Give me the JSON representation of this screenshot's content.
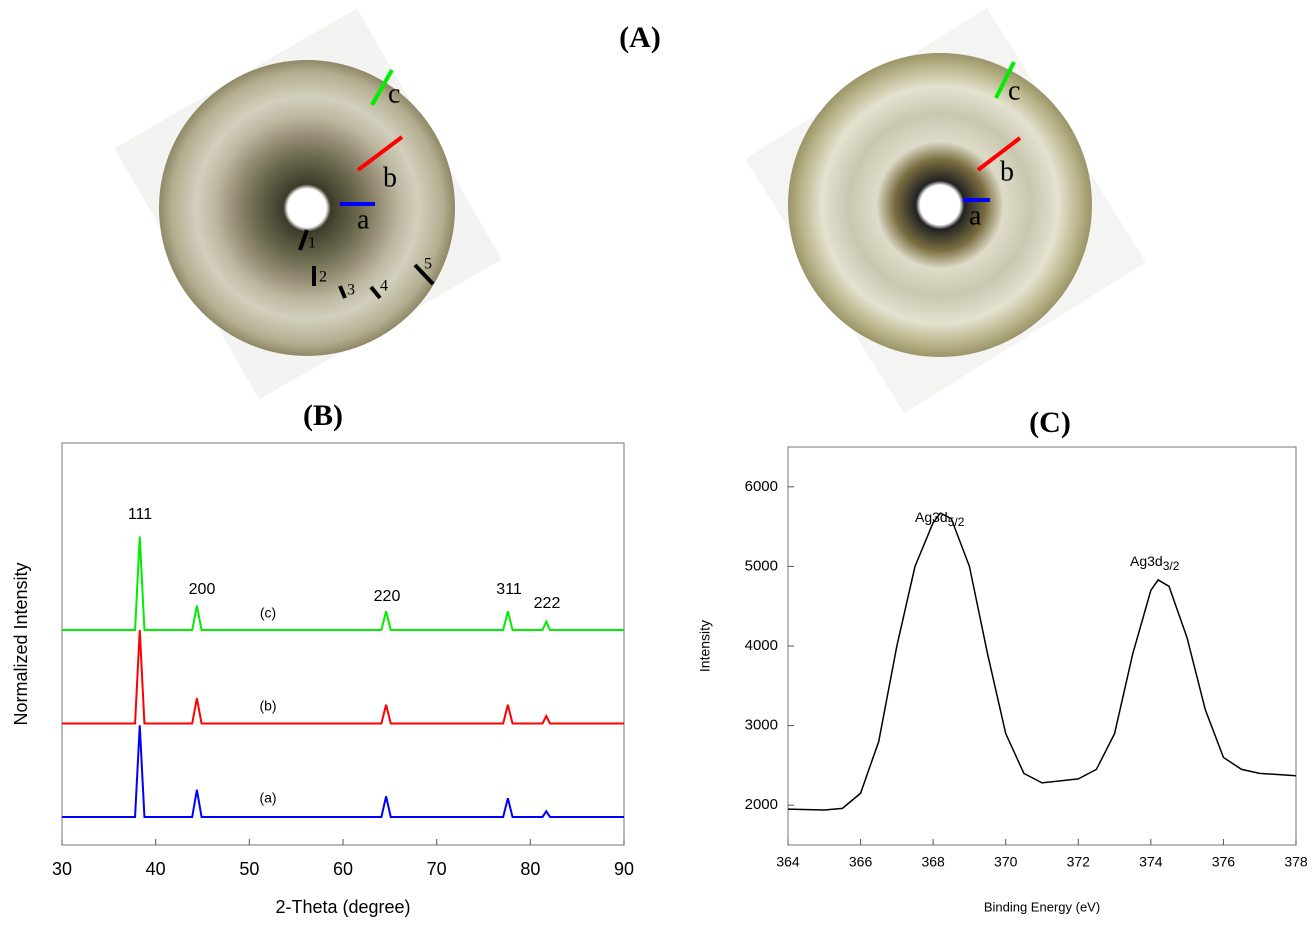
{
  "panel_a": {
    "title": "(A)",
    "left_labels": [
      "a",
      "b",
      "c"
    ],
    "region_labels": [
      "1",
      "2",
      "3",
      "4",
      "5"
    ],
    "right_labels": [
      "a",
      "b",
      "c"
    ]
  },
  "chart_data": [
    {
      "type": "line",
      "title": "(B)",
      "x_label": "2-Theta (degree)",
      "y_label": "Normalized Intensity",
      "x": [
        30,
        37.8,
        38.3,
        38.8,
        43.9,
        44.4,
        44.9,
        64.1,
        64.6,
        65.1,
        77.1,
        77.6,
        78.1,
        81.3,
        81.7,
        82.1,
        90
      ],
      "series": [
        {
          "name": "(a)",
          "color": "#0000ff",
          "values": [
            0.3,
            0.3,
            1.28,
            0.3,
            0.3,
            0.59,
            0.3,
            0.3,
            0.52,
            0.3,
            0.3,
            0.5,
            0.3,
            0.3,
            0.36,
            0.3,
            0.3
          ]
        },
        {
          "name": "(b)",
          "color": "#ff0000",
          "values": [
            1.3,
            1.3,
            2.3,
            1.3,
            1.3,
            1.57,
            1.3,
            1.3,
            1.5,
            1.3,
            1.3,
            1.5,
            1.3,
            1.3,
            1.38,
            1.3,
            1.3
          ]
        },
        {
          "name": "(c)",
          "color": "#00ee00",
          "values": [
            2.3,
            2.3,
            3.3,
            2.3,
            2.3,
            2.56,
            2.3,
            2.3,
            2.5,
            2.3,
            2.3,
            2.5,
            2.3,
            2.3,
            2.39,
            2.3,
            2.3
          ]
        }
      ],
      "annotations": [
        "111",
        "200",
        "220",
        "311",
        "222"
      ],
      "xlim": [
        30,
        90
      ],
      "xticks": [
        30,
        40,
        50,
        60,
        70,
        80,
        90
      ],
      "ylim": [
        0,
        4.3
      ]
    },
    {
      "type": "line",
      "title": "(C)",
      "x_label": "Binding Energy (eV)",
      "y_label": "Intensity",
      "x": [
        364,
        365,
        365.5,
        366,
        366.5,
        367,
        367.5,
        368,
        368.2,
        368.5,
        369,
        369.5,
        370,
        370.5,
        371,
        372,
        372.5,
        373,
        373.5,
        374,
        374.2,
        374.5,
        375,
        375.5,
        376,
        376.5,
        377,
        378
      ],
      "series": [
        {
          "color": "#000000",
          "values": [
            1950,
            1940,
            1960,
            2150,
            2800,
            4000,
            5000,
            5550,
            5670,
            5600,
            5000,
            3900,
            2900,
            2400,
            2280,
            2330,
            2450,
            2900,
            3900,
            4700,
            4830,
            4750,
            4100,
            3200,
            2600,
            2450,
            2400,
            2370
          ]
        }
      ],
      "annotations": [
        {
          "text": "Ag3d",
          "subscript": "5/2"
        },
        {
          "text": "Ag3d",
          "subscript": "3/2"
        }
      ],
      "xlim": [
        364,
        378
      ],
      "xticks": [
        364,
        366,
        368,
        370,
        372,
        374,
        376,
        378
      ],
      "ylim": [
        1500,
        6500
      ],
      "yticks": [
        2000,
        3000,
        4000,
        5000,
        6000
      ]
    }
  ]
}
